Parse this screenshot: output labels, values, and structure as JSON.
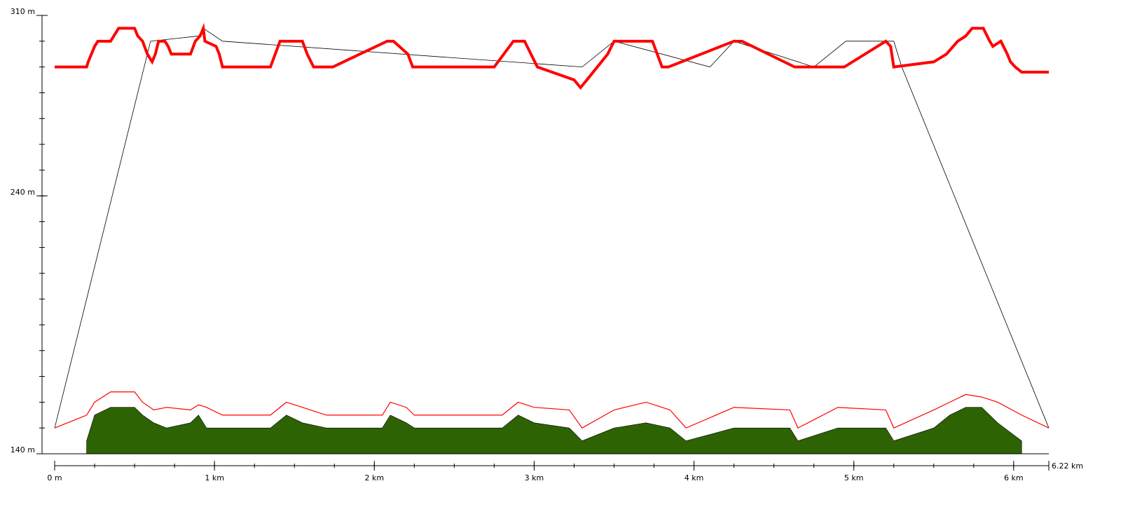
{
  "chart_data": {
    "type": "area",
    "y_axis": {
      "unit": "m",
      "range": [
        140,
        310
      ],
      "major_ticks": [
        140,
        240,
        310
      ],
      "tick_labels": [
        "140 m",
        "240 m",
        "310 m"
      ],
      "minor_step": 10
    },
    "x_axis": {
      "unit": "km",
      "range": [
        0,
        6.22
      ],
      "major_ticks": [
        0,
        1,
        2,
        3,
        4,
        5,
        6,
        6.22
      ],
      "tick_labels": [
        "0 m",
        "1 km",
        "2 km",
        "3 km",
        "4 km",
        "5 km",
        "6 km",
        "6.22 km"
      ],
      "minor_step": 0.25
    },
    "grid": false,
    "legend": "none",
    "colors": {
      "profile": "#ff0000",
      "terrain_fill": "#2e6304",
      "guide_line": "#000000",
      "axis": "#000000"
    },
    "series": [
      {
        "role": "upper-profile",
        "style": "thick red line",
        "x": [
          0,
          0.2,
          0.21,
          0.23,
          0.25,
          0.27,
          0.35,
          0.4,
          0.5,
          0.52,
          0.55,
          0.58,
          0.61,
          0.63,
          0.65,
          0.69,
          0.71,
          0.73,
          0.85,
          0.88,
          0.91,
          0.93,
          0.94,
          1.01,
          1.03,
          1.05,
          1.08,
          1.35,
          1.38,
          1.41,
          1.55,
          1.58,
          1.62,
          1.68,
          1.72,
          1.74,
          2.08,
          2.12,
          2.21,
          2.24,
          2.75,
          2.87,
          2.94,
          2.98,
          3.02,
          3.25,
          3.29,
          3.33,
          3.46,
          3.5,
          3.74,
          3.77,
          3.8,
          3.84,
          4.25,
          4.3,
          4.63,
          4.72,
          4.84,
          4.94,
          5.2,
          5.23,
          5.25,
          5.5,
          5.58,
          5.65,
          5.7,
          5.74,
          5.81,
          5.85,
          5.87,
          5.92,
          5.96,
          5.98,
          6.01,
          6.05,
          6.22
        ],
        "y": [
          290,
          290,
          292,
          295,
          298,
          300,
          300,
          305,
          305,
          302,
          300,
          295,
          292,
          295,
          300,
          300,
          298,
          295,
          295,
          300,
          302,
          305,
          300,
          298,
          295,
          290,
          290,
          290,
          295,
          300,
          300,
          295,
          290,
          290,
          290,
          290,
          300,
          300,
          295,
          290,
          290,
          300,
          300,
          295,
          290,
          285,
          282,
          285,
          295,
          300,
          300,
          295,
          290,
          290,
          300,
          300,
          290,
          290,
          290,
          290,
          300,
          298,
          290,
          292,
          295,
          300,
          302,
          305,
          305,
          300,
          298,
          300,
          295,
          292,
          290,
          288,
          288
        ]
      },
      {
        "role": "lower-profile",
        "style": "thin red line",
        "x": [
          0,
          0.2,
          0.25,
          0.35,
          0.5,
          0.55,
          0.62,
          0.7,
          0.85,
          0.9,
          0.95,
          1.05,
          1.35,
          1.45,
          1.55,
          1.7,
          2.05,
          2.1,
          2.2,
          2.25,
          2.8,
          2.9,
          3.0,
          3.22,
          3.3,
          3.5,
          3.7,
          3.85,
          3.95,
          4.25,
          4.6,
          4.65,
          4.9,
          5.2,
          5.25,
          5.5,
          5.6,
          5.7,
          5.8,
          5.9,
          6.05,
          6.22
        ],
        "y": [
          150,
          155,
          160,
          164,
          164,
          160,
          157,
          158,
          157,
          159,
          158,
          155,
          155,
          160,
          158,
          155,
          155,
          160,
          158,
          155,
          155,
          160,
          158,
          157,
          150,
          157,
          160,
          157,
          150,
          158,
          157,
          150,
          158,
          157,
          150,
          157,
          160,
          163,
          162,
          160,
          155,
          150
        ]
      },
      {
        "role": "terrain-fill",
        "style": "filled dark green area",
        "x": [
          0.2,
          0.25,
          0.35,
          0.5,
          0.55,
          0.62,
          0.7,
          0.85,
          0.9,
          0.95,
          1.05,
          1.35,
          1.45,
          1.55,
          1.7,
          2.05,
          2.1,
          2.2,
          2.25,
          2.8,
          2.9,
          3.0,
          3.22,
          3.3,
          3.5,
          3.7,
          3.85,
          3.95,
          4.25,
          4.6,
          4.65,
          4.9,
          5.2,
          5.25,
          5.5,
          5.6,
          5.7,
          5.8,
          5.9,
          6.05
        ],
        "y": [
          145,
          155,
          158,
          158,
          155,
          152,
          150,
          152,
          155,
          150,
          150,
          150,
          155,
          152,
          150,
          150,
          155,
          152,
          150,
          150,
          155,
          152,
          150,
          145,
          150,
          152,
          150,
          145,
          150,
          150,
          145,
          150,
          150,
          145,
          150,
          155,
          158,
          158,
          152,
          145
        ]
      },
      {
        "role": "connector",
        "style": "thin black line",
        "x": [
          0,
          0.6,
          0.9,
          0.93,
          1.05,
          3.3,
          3.5,
          4.1,
          4.25,
          4.75,
          4.95,
          5.25,
          5.3,
          6.22
        ],
        "y": [
          150,
          300,
          302,
          305,
          300,
          290,
          300,
          290,
          300,
          290,
          300,
          300,
          290,
          150
        ]
      }
    ]
  }
}
